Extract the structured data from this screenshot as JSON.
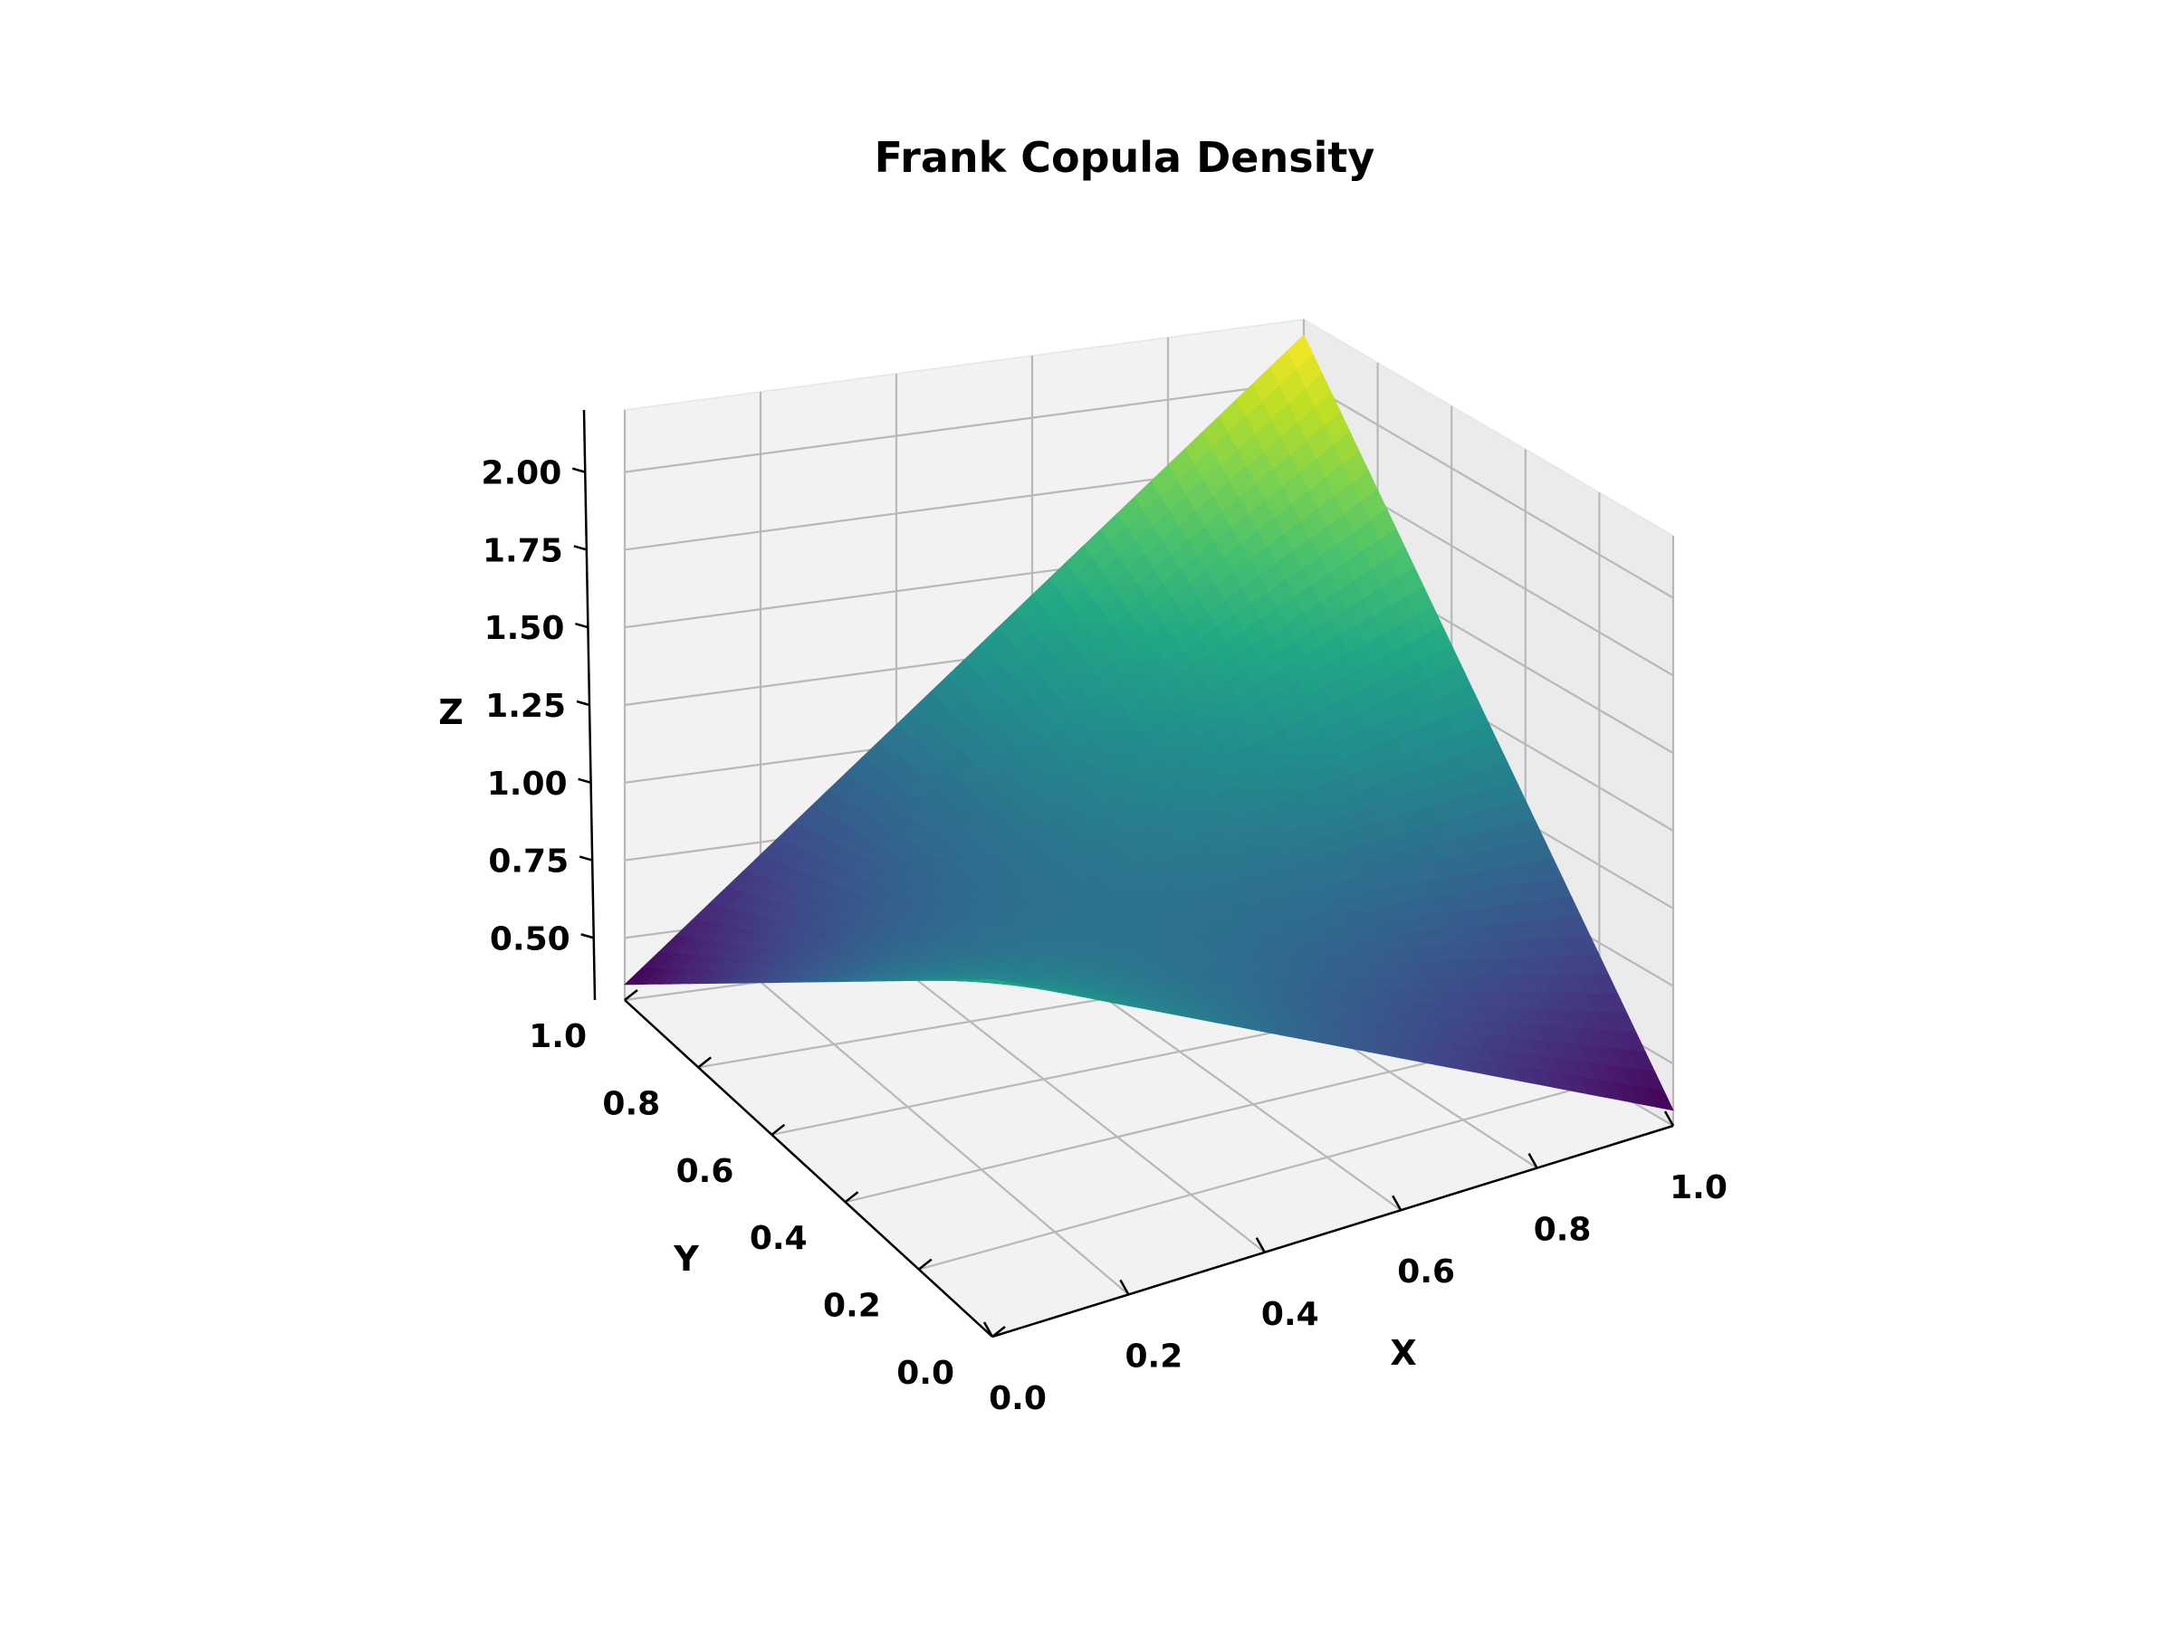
{
  "chart_data": {
    "type": "surface3d",
    "title": "Frank Copula Density",
    "xlabel": "X",
    "ylabel": "Y",
    "zlabel": "Z",
    "xlim": [
      0,
      1
    ],
    "ylim": [
      0,
      1
    ],
    "zlim": [
      0.3,
      2.2
    ],
    "xticks": [
      "0.0",
      "0.2",
      "0.4",
      "0.6",
      "0.8",
      "1.0"
    ],
    "yticks": [
      "0.0",
      "0.2",
      "0.4",
      "0.6",
      "0.8",
      "1.0"
    ],
    "zticks": [
      "0.50",
      "0.75",
      "1.00",
      "1.25",
      "1.50",
      "1.75",
      "2.00"
    ],
    "corner_values": {
      "x0_y0": 1.45,
      "x1_y1": 2.15,
      "x1_y0": 0.35,
      "x0_y1": 0.35
    },
    "grid": true,
    "colormap": "viridis"
  }
}
